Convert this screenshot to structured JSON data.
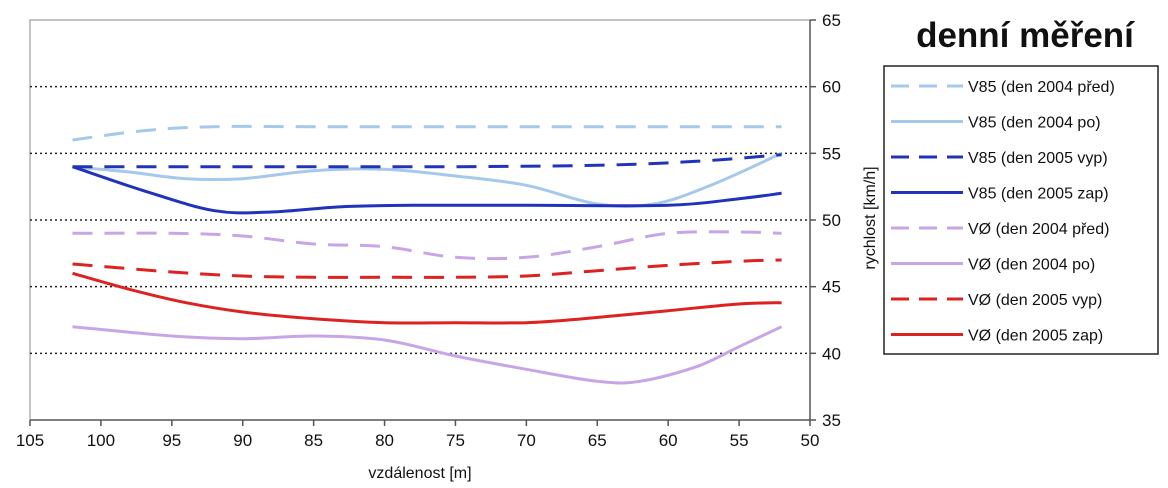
{
  "chart_data": {
    "type": "line",
    "title": "denní měření",
    "xlabel": "vzdálenost [m]",
    "ylabel": "rychlost [km/h]",
    "xlim": [
      105,
      50
    ],
    "ylim": [
      35,
      65
    ],
    "x_ticks": [
      105,
      100,
      95,
      90,
      85,
      80,
      75,
      70,
      65,
      60,
      55,
      50
    ],
    "y_ticks": [
      35,
      40,
      45,
      50,
      55,
      60,
      65
    ],
    "x_axis_reversed": true,
    "y_axis_side": "right",
    "gridlines": "horizontal dotted",
    "legend_position": "right",
    "series": [
      {
        "name": "V85 (den 2004 před)",
        "color": "#a6c8ea",
        "dash": "dashed",
        "points": [
          [
            102,
            56
          ],
          [
            97,
            56.7
          ],
          [
            92,
            57
          ],
          [
            85,
            57
          ],
          [
            75,
            57
          ],
          [
            65,
            57
          ],
          [
            55,
            57
          ],
          [
            52,
            57
          ]
        ]
      },
      {
        "name": "V85 (den 2004 po)",
        "color": "#a6c8ea",
        "dash": "solid",
        "points": [
          [
            102,
            54
          ],
          [
            98,
            53.6
          ],
          [
            94,
            53.1
          ],
          [
            90,
            53.1
          ],
          [
            85,
            53.7
          ],
          [
            80,
            53.8
          ],
          [
            75,
            53.3
          ],
          [
            70,
            52.6
          ],
          [
            65,
            51.2
          ],
          [
            61,
            51.2
          ],
          [
            57,
            52.6
          ],
          [
            52,
            55
          ]
        ]
      },
      {
        "name": "V85 (den 2005 vyp)",
        "color": "#2233bb",
        "dash": "dashed",
        "points": [
          [
            102,
            54
          ],
          [
            95,
            54
          ],
          [
            85,
            54
          ],
          [
            75,
            54
          ],
          [
            65,
            54.1
          ],
          [
            58,
            54.4
          ],
          [
            52,
            54.9
          ]
        ]
      },
      {
        "name": "V85 (den 2005 zap)",
        "color": "#2233bb",
        "dash": "solid",
        "points": [
          [
            102,
            54
          ],
          [
            97,
            52.2
          ],
          [
            92,
            50.7
          ],
          [
            88,
            50.6
          ],
          [
            83,
            51
          ],
          [
            78,
            51.1
          ],
          [
            70,
            51.1
          ],
          [
            60,
            51.1
          ],
          [
            55,
            51.6
          ],
          [
            52,
            52
          ]
        ]
      },
      {
        "name": "VØ (den 2004 před)",
        "color": "#c7a6e8",
        "dash": "dashed",
        "points": [
          [
            102,
            49
          ],
          [
            95,
            49
          ],
          [
            90,
            48.8
          ],
          [
            85,
            48.2
          ],
          [
            80,
            48
          ],
          [
            75,
            47.2
          ],
          [
            70,
            47.2
          ],
          [
            65,
            48
          ],
          [
            60,
            49
          ],
          [
            55,
            49.1
          ],
          [
            52,
            49
          ]
        ]
      },
      {
        "name": "VØ (den 2004 po)",
        "color": "#c7a6e8",
        "dash": "solid",
        "points": [
          [
            102,
            42
          ],
          [
            95,
            41.3
          ],
          [
            90,
            41.1
          ],
          [
            85,
            41.3
          ],
          [
            80,
            41
          ],
          [
            75,
            39.8
          ],
          [
            70,
            38.8
          ],
          [
            65,
            37.9
          ],
          [
            62,
            37.9
          ],
          [
            58,
            39
          ],
          [
            55,
            40.5
          ],
          [
            52,
            42
          ]
        ]
      },
      {
        "name": "VØ (den 2005 vyp)",
        "color": "#dd2222",
        "dash": "dashed",
        "points": [
          [
            102,
            46.7
          ],
          [
            95,
            46.1
          ],
          [
            90,
            45.8
          ],
          [
            85,
            45.7
          ],
          [
            80,
            45.7
          ],
          [
            75,
            45.7
          ],
          [
            70,
            45.8
          ],
          [
            65,
            46.2
          ],
          [
            60,
            46.6
          ],
          [
            55,
            46.9
          ],
          [
            52,
            47
          ]
        ]
      },
      {
        "name": "VØ (den 2005 zap)",
        "color": "#dd2222",
        "dash": "solid",
        "points": [
          [
            102,
            46
          ],
          [
            98,
            44.8
          ],
          [
            94,
            43.8
          ],
          [
            90,
            43.1
          ],
          [
            85,
            42.6
          ],
          [
            80,
            42.3
          ],
          [
            75,
            42.3
          ],
          [
            70,
            42.3
          ],
          [
            66,
            42.6
          ],
          [
            60,
            43.2
          ],
          [
            55,
            43.7
          ],
          [
            52,
            43.8
          ]
        ]
      }
    ]
  }
}
